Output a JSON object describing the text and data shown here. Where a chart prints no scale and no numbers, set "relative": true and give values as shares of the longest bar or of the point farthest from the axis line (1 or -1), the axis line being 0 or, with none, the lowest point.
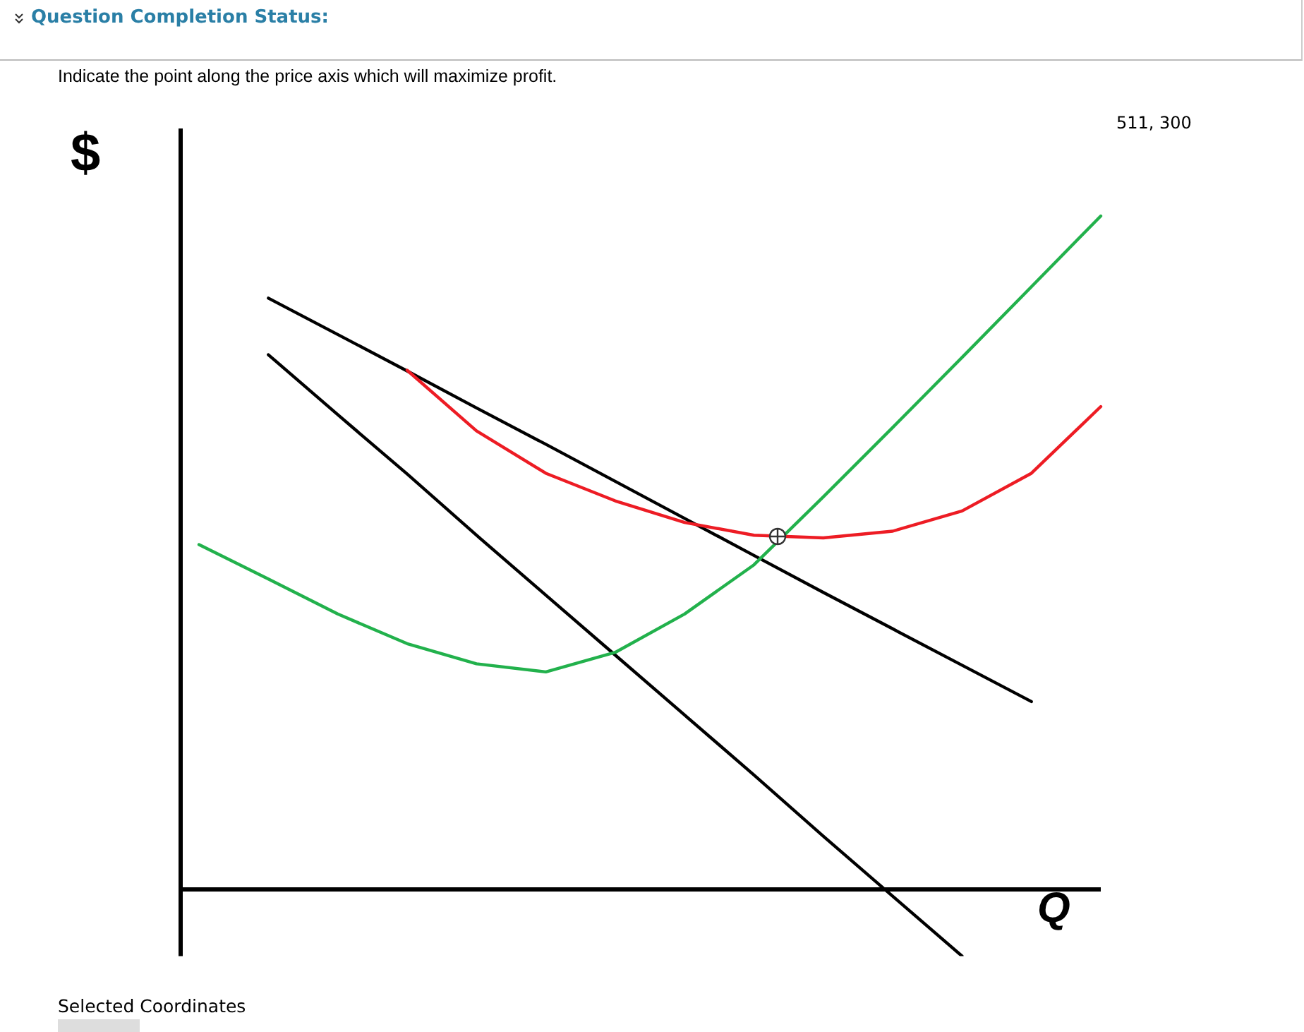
{
  "chart_data": {
    "type": "line",
    "title": "Indicate the point along the price axis which will maximize profit.",
    "xlabel": "Q",
    "ylabel": "$",
    "relative": true,
    "marker": "none",
    "line_style": "solid",
    "annotations": [
      "Question Completion Status:",
      "511, 300",
      "Selected Coordinates"
    ],
    "categories": [
      null,
      null,
      null,
      null,
      null,
      null,
      null,
      null,
      null,
      null,
      null,
      null,
      null,
      null
    ],
    "series": [
      {
        "color": "#000000",
        "values": [
          null,
          0.878,
          0.824,
          0.77,
          0.715,
          0.661,
          0.606,
          0.551,
          0.496,
          0.441,
          0.387,
          0.333,
          0.279,
          null
        ]
      },
      {
        "color": "#000000",
        "values": [
          null,
          0.794,
          0.705,
          0.617,
          0.526,
          0.437,
          0.348,
          0.259,
          0.17,
          0.079,
          -0.01,
          -0.099,
          null,
          null
        ]
      },
      {
        "color": "#ed1c24",
        "values": [
          null,
          null,
          null,
          0.771,
          0.681,
          0.618,
          0.577,
          0.545,
          0.526,
          0.522,
          0.532,
          0.562,
          0.618,
          0.717
        ]
      },
      {
        "color": "#22b14c",
        "values": [
          0.512,
          0.461,
          0.409,
          0.365,
          0.335,
          0.323,
          0.352,
          0.409,
          0.482,
          0.583,
          0.686,
          0.79,
          0.895,
          1.0
        ]
      }
    ]
  }
}
